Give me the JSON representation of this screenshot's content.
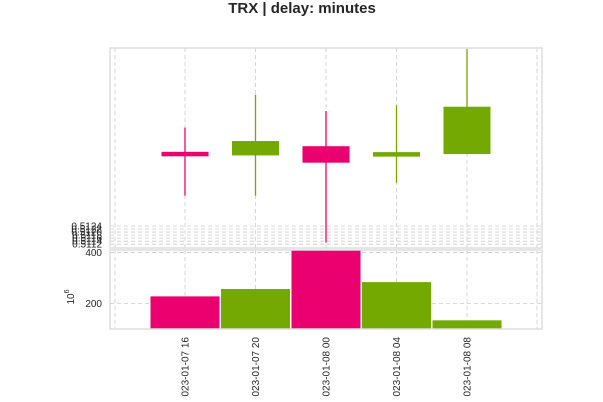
{
  "chart_data": {
    "type": "candlestick",
    "title": "TRX | delay: minutes",
    "grid": true,
    "x": [
      "023-01-07 16",
      "023-01-07 20",
      "023-01-08 00",
      "023-01-08 04",
      "023-01-08 08"
    ],
    "price": {
      "ylim": [
        0.51095,
        0.52412
      ],
      "yticks": [
        "0.5112",
        "0.5114",
        "0.5116",
        "0.5118",
        "0.5120",
        "0.5122",
        "0.5124"
      ],
      "candles": [
        {
          "open": 0.51725,
          "high": 0.51888,
          "low": 0.5144,
          "close": 0.51708
        },
        {
          "open": 0.51708,
          "high": 0.52104,
          "low": 0.5144,
          "close": 0.51796
        },
        {
          "open": 0.51762,
          "high": 0.51997,
          "low": 0.5113,
          "close": 0.5166
        },
        {
          "open": 0.51702,
          "high": 0.52035,
          "low": 0.51524,
          "close": 0.51723
        },
        {
          "open": 0.51717,
          "high": 0.52405,
          "low": 0.51717,
          "close": 0.52022
        }
      ]
    },
    "volume": {
      "scale_label": "10^6",
      "ylim": [
        100,
        410
      ],
      "yticks": [
        "200",
        "400"
      ],
      "values": [
        228,
        257,
        410,
        284,
        134
      ]
    },
    "colors": {
      "up": "#73a900",
      "down": "#ea006f",
      "grid": "#cccccc",
      "frame": "#dddddd"
    }
  }
}
